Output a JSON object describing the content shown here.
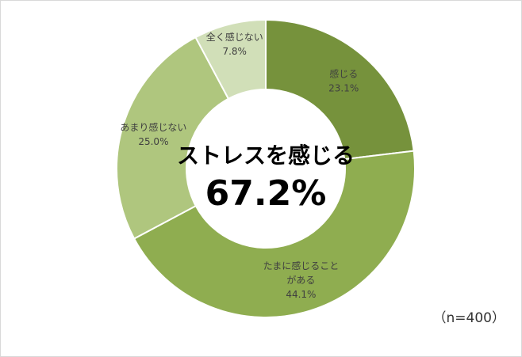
{
  "chart_data": {
    "type": "pie",
    "donut": true,
    "categories": [
      "感じる",
      "たまに感じることがある",
      "あまり感じない",
      "全く感じない"
    ],
    "label_lines": [
      [
        "感じる"
      ],
      [
        "たまに感じること",
        "がある"
      ],
      [
        "あまり感じない"
      ],
      [
        "全く感じない"
      ]
    ],
    "values": [
      23.1,
      44.1,
      25.0,
      7.8
    ],
    "value_labels": [
      "23.1%",
      "44.1%",
      "25.0%",
      "7.8%"
    ],
    "colors": [
      "#76923C",
      "#8FAD50",
      "#AFC67E",
      "#D1DFB8"
    ],
    "center_title": "ストレスを感じる",
    "center_value": "67.2%",
    "sample_size": "（n=400）"
  }
}
